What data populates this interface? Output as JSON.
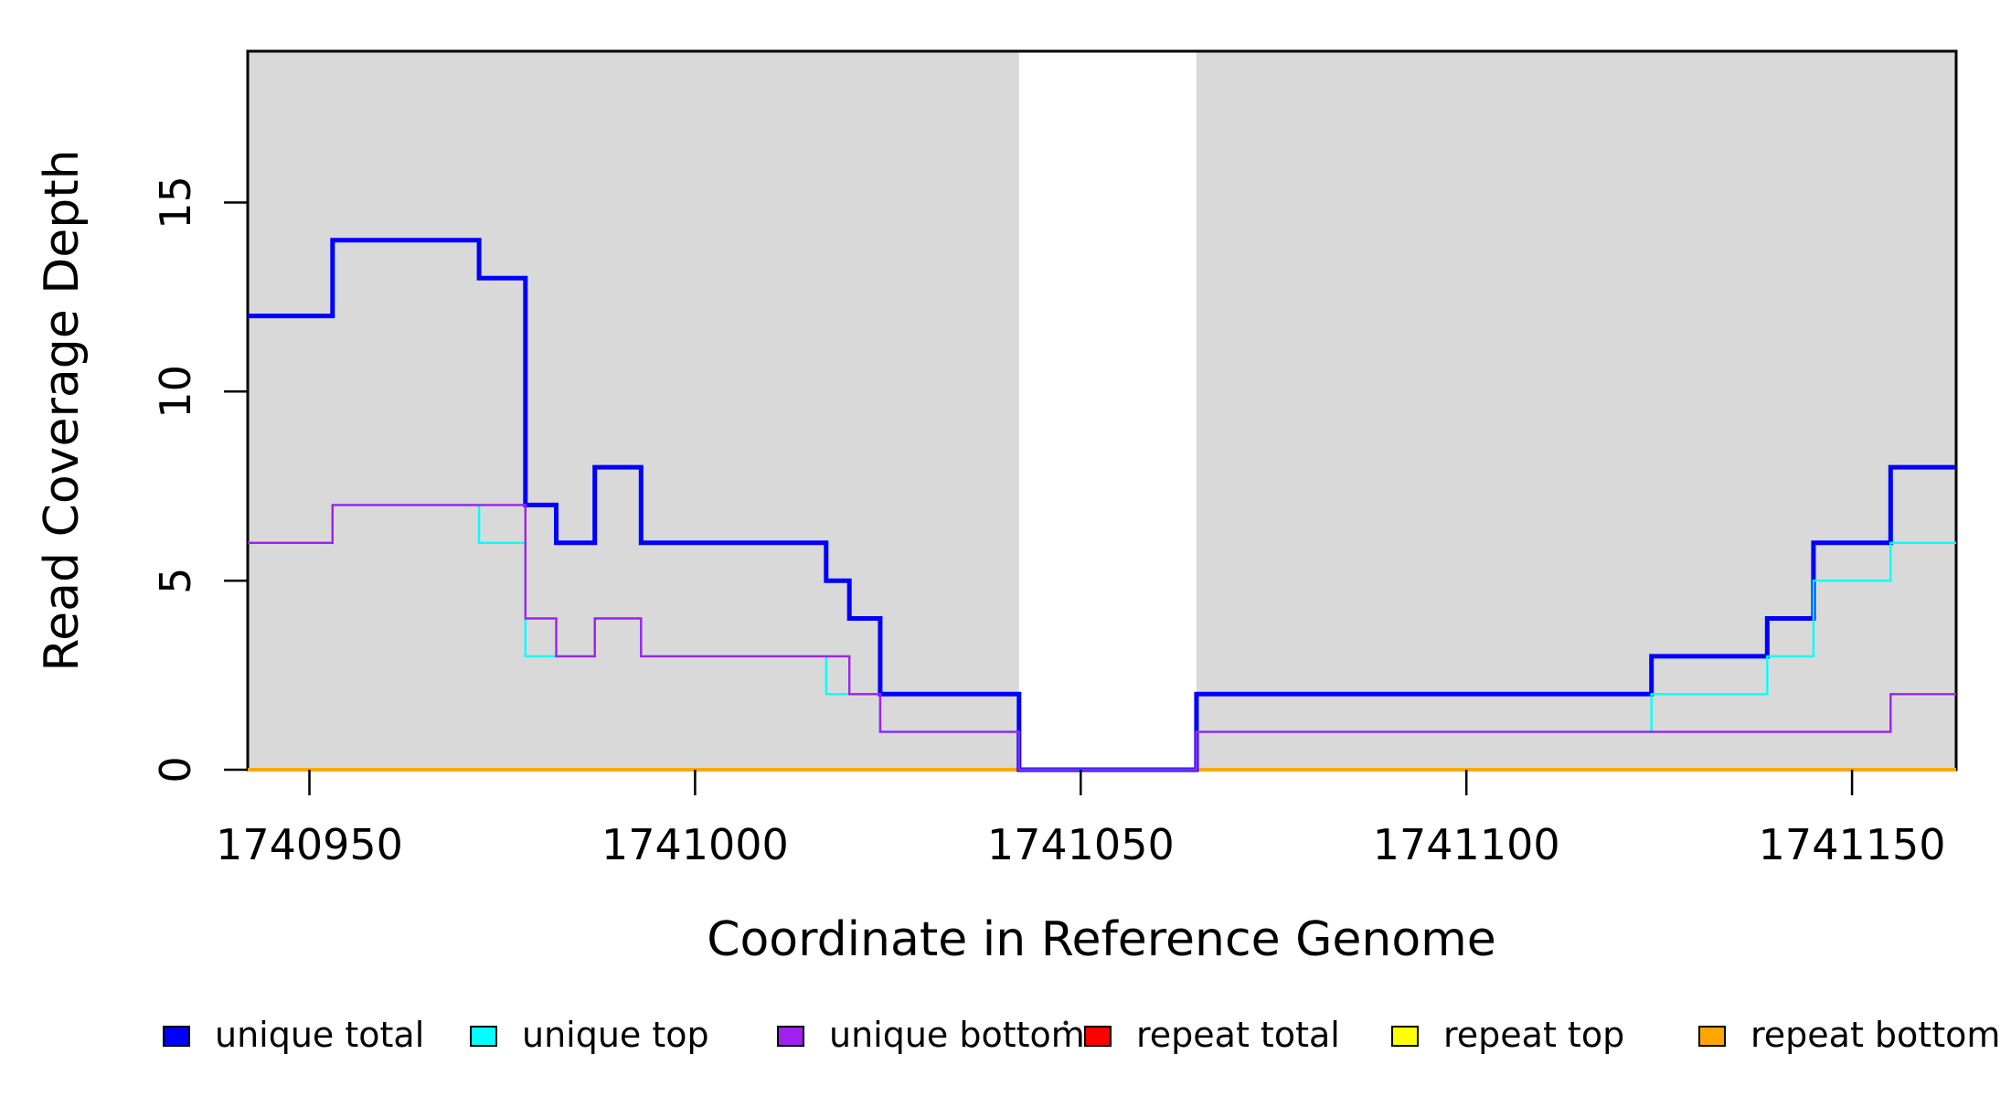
{
  "figure": {
    "background": "#FFFFFF",
    "shaded_band_color": "#D9D9D9",
    "border_color": "#000000"
  },
  "chart_data": {
    "type": "line",
    "subtype": "step-coverage",
    "title": "",
    "xlabel": "Coordinate in Reference Genome",
    "ylabel": "Read Coverage Depth",
    "xlim": [
      1740942,
      1741163.5
    ],
    "ylim": [
      0,
      19
    ],
    "x_ticks": [
      1740950,
      1741000,
      1741050,
      1741100,
      1741150
    ],
    "x_tick_labels": [
      "1740950",
      "1741000",
      "1741050",
      "1741100",
      "1741150"
    ],
    "y_ticks": [
      0,
      5,
      10,
      15
    ],
    "y_tick_labels": [
      "0",
      "5",
      "10",
      "15"
    ],
    "grid": false,
    "legend_position": "bottom",
    "shaded_regions": [
      {
        "x0": 1740942,
        "x1": 1741042,
        "color": "#D9D9D9"
      },
      {
        "x0": 1741065,
        "x1": 1741163.5,
        "color": "#D9D9D9"
      }
    ],
    "gap_region": {
      "x0": 1741042,
      "x1": 1741065,
      "color": "#FFFFFF"
    },
    "series": [
      {
        "name": "repeat total",
        "color": "#FF0000",
        "lw": 3.5,
        "steps": [
          [
            1740942,
            0
          ]
        ]
      },
      {
        "name": "repeat top",
        "color": "#FFFF00",
        "lw": 3.5,
        "steps": [
          [
            1740942,
            0
          ]
        ]
      },
      {
        "name": "repeat bottom",
        "color": "#FFA500",
        "lw": 3.5,
        "steps": [
          [
            1740942,
            0
          ]
        ]
      },
      {
        "name": "unique total",
        "color": "#0000FF",
        "lw": 5,
        "steps": [
          [
            1740942,
            12
          ],
          [
            1740953,
            14
          ],
          [
            1740972,
            13
          ],
          [
            1740978,
            7
          ],
          [
            1740982,
            6
          ],
          [
            1740987,
            8
          ],
          [
            1740993,
            6
          ],
          [
            1741017,
            5
          ],
          [
            1741020,
            4
          ],
          [
            1741024,
            2
          ],
          [
            1741042,
            0
          ],
          [
            1741065,
            2
          ],
          [
            1741124,
            3
          ],
          [
            1741139,
            4
          ],
          [
            1741145,
            6
          ],
          [
            1741155,
            8
          ]
        ]
      },
      {
        "name": "unique top",
        "color": "#00FFFF",
        "lw": 2.4,
        "steps": [
          [
            1740942,
            6
          ],
          [
            1740953,
            7
          ],
          [
            1740972,
            6
          ],
          [
            1740978,
            3
          ],
          [
            1740987,
            4
          ],
          [
            1740993,
            3
          ],
          [
            1741017,
            2
          ],
          [
            1741024,
            1
          ],
          [
            1741042,
            0
          ],
          [
            1741065,
            1
          ],
          [
            1741124,
            2
          ],
          [
            1741139,
            3
          ],
          [
            1741145,
            5
          ],
          [
            1741155,
            6
          ]
        ]
      },
      {
        "name": "unique bottom",
        "color": "#A020F0",
        "lw": 2.4,
        "steps": [
          [
            1740942,
            6
          ],
          [
            1740953,
            7
          ],
          [
            1740978,
            4
          ],
          [
            1740982,
            3
          ],
          [
            1740987,
            4
          ],
          [
            1740993,
            3
          ],
          [
            1741020,
            2
          ],
          [
            1741024,
            1
          ],
          [
            1741042,
            0
          ],
          [
            1741065,
            1
          ],
          [
            1741155,
            2
          ]
        ]
      }
    ]
  },
  "legend": {
    "items": [
      {
        "label": "unique total",
        "color": "#0000FF"
      },
      {
        "label": "unique top",
        "color": "#00FFFF"
      },
      {
        "label": "unique bottom",
        "color": "#A020F0"
      },
      {
        "label": "repeat total",
        "color": "#FF0000"
      },
      {
        "label": "repeat top",
        "color": "#FFFF00"
      },
      {
        "label": "repeat bottom",
        "color": "#FFA500"
      }
    ]
  }
}
